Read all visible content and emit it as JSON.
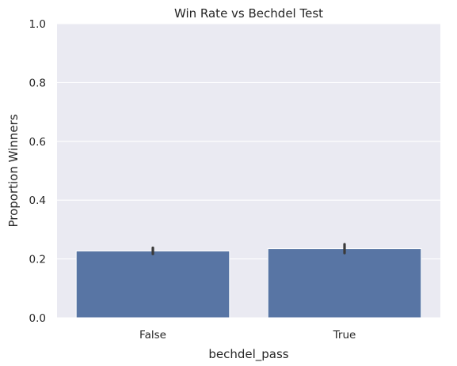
{
  "chart_data": {
    "type": "bar",
    "title": "Win Rate vs Bechdel Test",
    "xlabel": "bechdel_pass",
    "ylabel": "Proportion Winners",
    "categories": [
      "False",
      "True"
    ],
    "values": [
      0.227,
      0.235
    ],
    "error_bars": [
      [
        0.217,
        0.238
      ],
      [
        0.22,
        0.25
      ]
    ],
    "ylim": [
      0,
      1.0
    ],
    "yticks": [
      "0.0",
      "0.2",
      "0.4",
      "0.6",
      "0.8",
      "1.0"
    ],
    "grid": true,
    "colors": {
      "bar": "#5875a4",
      "plot_background": "#eaeaf2",
      "grid": "#ffffff",
      "error_bar": "#3a3a3a",
      "text": "#262626"
    }
  }
}
